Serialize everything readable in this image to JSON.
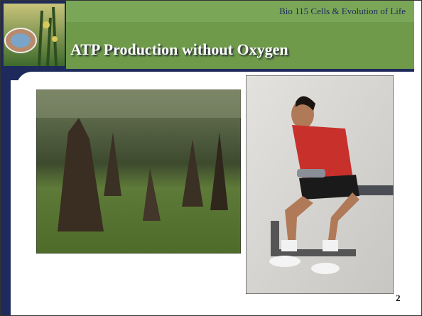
{
  "header": {
    "course": "Bio 115 Cells & Evolution of Life",
    "title": "ATP Production without Oxygen"
  },
  "slide_number": "2"
}
